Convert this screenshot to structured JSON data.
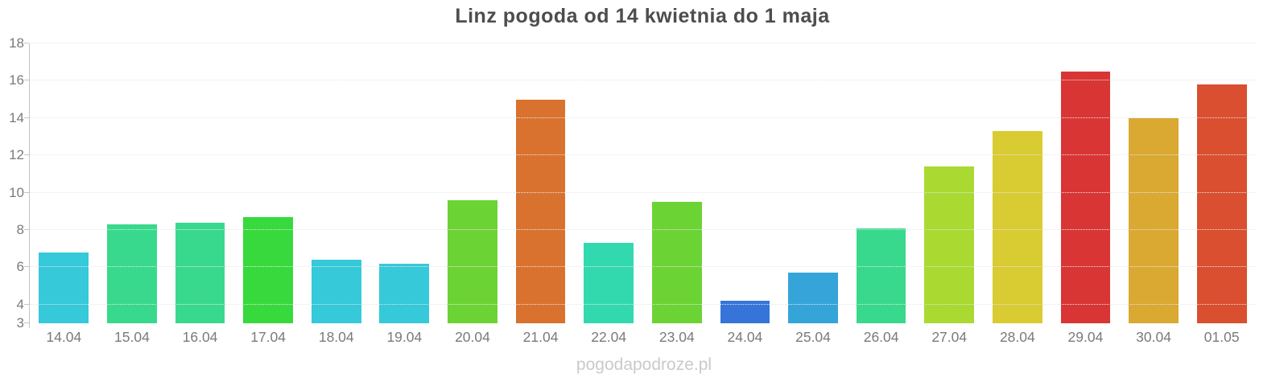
{
  "title": "Linz pogoda od 14 kwietnia do 1 maja",
  "watermark": "pogodapodroze.pl",
  "chart_data": {
    "type": "bar",
    "title": "Linz pogoda od 14 kwietnia do 1 maja",
    "xlabel": "",
    "ylabel": "",
    "categories": [
      "14.04",
      "15.04",
      "16.04",
      "17.04",
      "18.04",
      "19.04",
      "20.04",
      "21.04",
      "22.04",
      "23.04",
      "24.04",
      "25.04",
      "26.04",
      "27.04",
      "28.04",
      "29.04",
      "30.04",
      "01.05"
    ],
    "values": [
      6.8,
      8.3,
      8.4,
      8.7,
      6.4,
      6.2,
      9.6,
      15.0,
      7.3,
      9.5,
      4.2,
      5.7,
      8.1,
      11.4,
      13.3,
      16.5,
      14.0,
      15.8
    ],
    "bar_colors": [
      "#35c9d9",
      "#38d98c",
      "#38d98c",
      "#38d93c",
      "#35c9d9",
      "#35c9d9",
      "#6cd334",
      "#d9722f",
      "#32d9af",
      "#6cd334",
      "#3674d9",
      "#35a4d9",
      "#38d98c",
      "#aad932",
      "#d9cb32",
      "#d93535",
      "#d9a932",
      "#d94f2f"
    ],
    "ylim": [
      3,
      18
    ],
    "yticks": [
      3,
      4,
      6,
      8,
      10,
      12,
      14,
      16,
      18
    ],
    "grid": true,
    "legend": false
  },
  "colors": {
    "title": "#4d4d4d",
    "axis_label": "#7a7a7a",
    "axis_line": "#c5c5c5",
    "grid": "#e7e7e7",
    "watermark": "#cacaca",
    "background": "#ffffff"
  }
}
